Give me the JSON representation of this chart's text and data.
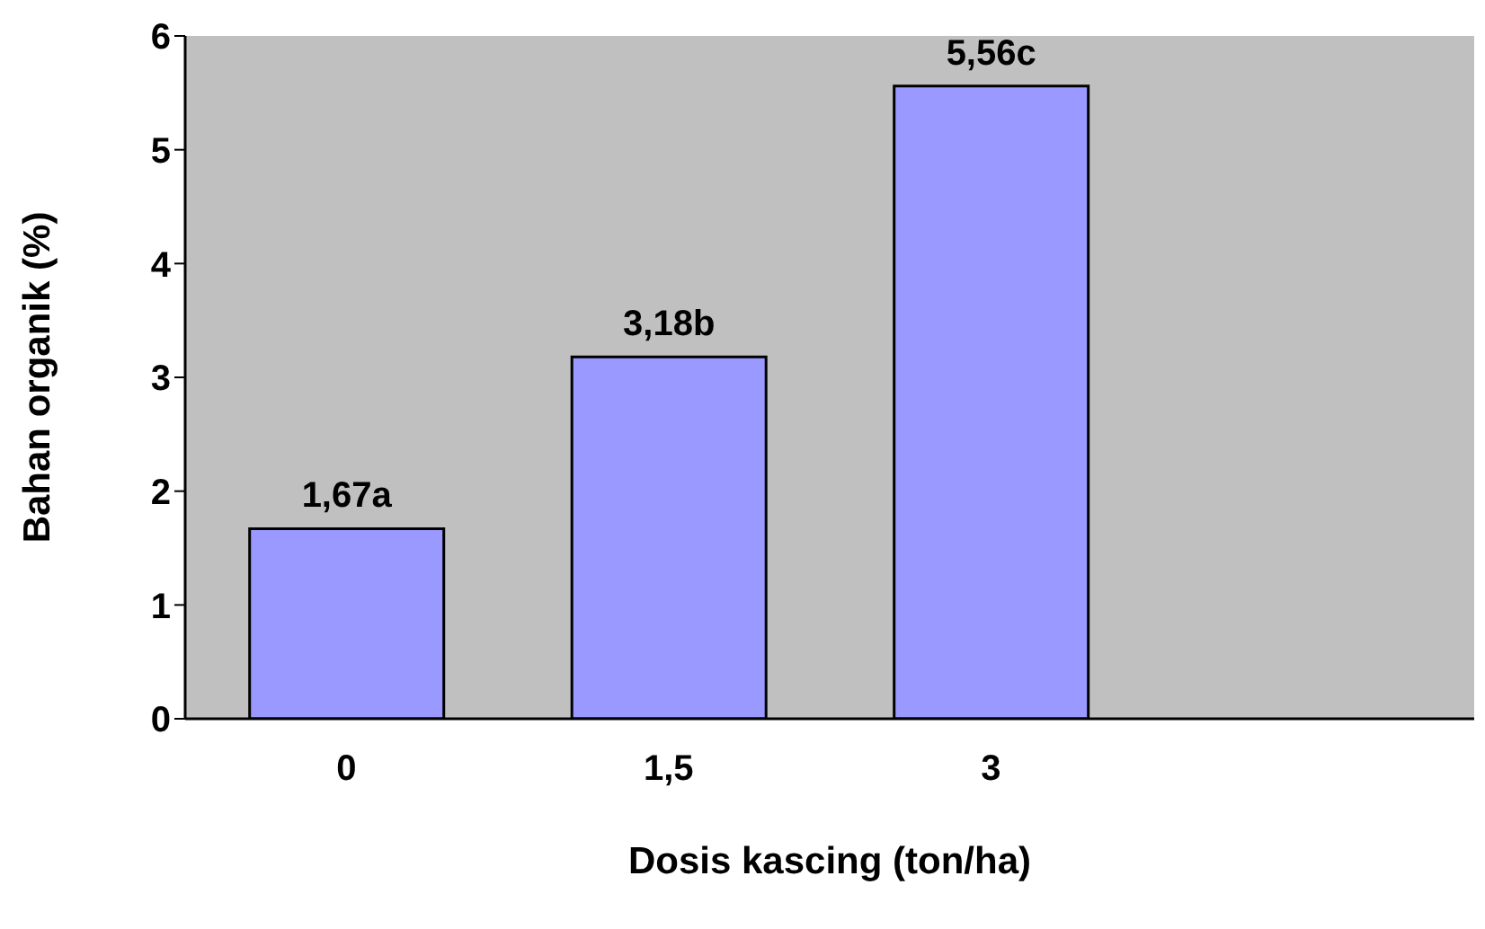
{
  "chart_data": {
    "type": "bar",
    "xlabel": "Dosis kascing (ton/ha)",
    "ylabel": "Bahan organik (%)",
    "categories": [
      "0",
      "1,5",
      "3",
      null
    ],
    "values": [
      1.67,
      3.18,
      5.56,
      null
    ],
    "value_labels": [
      "1,67a",
      "3,18b",
      "5,56c",
      null
    ],
    "color": "#9999ff",
    "ylim": [
      0,
      6
    ],
    "yticks": [
      0,
      1,
      2,
      3,
      4,
      5,
      6
    ]
  }
}
